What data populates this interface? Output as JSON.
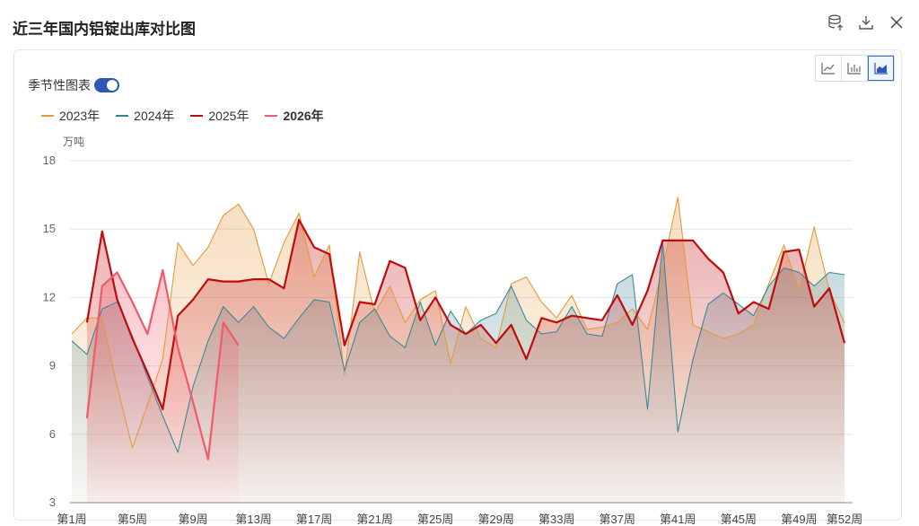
{
  "header": {
    "title": "近三年国内铝锭出库对比图"
  },
  "toolbar": {
    "icons": [
      "database-export-icon",
      "download-icon",
      "close-icon"
    ]
  },
  "chart_toggle": {
    "label": "季节性图表",
    "enabled": true
  },
  "chart_types": [
    "line",
    "bar",
    "area"
  ],
  "chart_types_active": "area",
  "unit_label": "万吨",
  "chart_data": {
    "type": "area",
    "ylim": [
      3,
      18
    ],
    "yticks": [
      "18",
      "15",
      "12",
      "9",
      "6",
      "3"
    ],
    "xlabels": [
      "第1周",
      "第5周",
      "第9周",
      "第13周",
      "第17周",
      "第21周",
      "第25周",
      "第29周",
      "第33周",
      "第37周",
      "第41周",
      "第45周",
      "第49周",
      "第52周"
    ],
    "xlabel_weeks": [
      1,
      5,
      9,
      13,
      17,
      21,
      25,
      29,
      33,
      37,
      41,
      45,
      49,
      52
    ],
    "grid": true,
    "legend_position": "top-left",
    "series": [
      {
        "name": "2023年",
        "color": "#e39a3b",
        "start_week": 1,
        "values": [
          10.4,
          11.1,
          11.1,
          8.1,
          5.4,
          7.3,
          9.3,
          14.4,
          13.4,
          14.2,
          15.6,
          16.1,
          15.0,
          12.6,
          14.4,
          15.7,
          12.9,
          14.3,
          8.6,
          14.0,
          11.3,
          12.5,
          10.9,
          11.9,
          12.3,
          9.1,
          11.6,
          10.2,
          9.8,
          12.6,
          12.9,
          11.8,
          11.1,
          12.1,
          10.6,
          10.7,
          10.9,
          11.5,
          10.6,
          13.3,
          16.4,
          10.8,
          10.5,
          10.2,
          10.4,
          10.8,
          12.6,
          14.3,
          12.3,
          15.1,
          12.3,
          10.9
        ]
      },
      {
        "name": "2024年",
        "color": "#3b8798",
        "start_week": 1,
        "values": [
          10.1,
          9.5,
          11.5,
          11.8,
          10.3,
          8.5,
          6.8,
          5.2,
          8.1,
          10.1,
          11.6,
          10.9,
          11.6,
          10.7,
          10.2,
          11.1,
          11.9,
          11.8,
          8.8,
          10.9,
          11.5,
          10.3,
          9.8,
          11.8,
          9.9,
          11.4,
          10.4,
          11.0,
          11.3,
          12.5,
          11.0,
          10.4,
          10.5,
          11.6,
          10.4,
          10.3,
          12.6,
          13.0,
          7.1,
          14.4,
          6.1,
          9.3,
          11.7,
          12.2,
          11.7,
          11.2,
          12.5,
          13.3,
          13.1,
          12.5,
          13.1,
          13.0
        ]
      },
      {
        "name": "2025年",
        "color": "#c00b0b",
        "start_week": 2,
        "values": [
          10.9,
          14.9,
          11.9,
          10.2,
          8.7,
          7.1,
          11.2,
          11.9,
          12.8,
          12.7,
          12.7,
          12.8,
          12.8,
          12.4,
          15.4,
          14.2,
          13.9,
          9.9,
          11.8,
          11.7,
          13.6,
          13.3,
          11.0,
          12.0,
          10.8,
          10.4,
          10.8,
          10.0,
          10.8,
          9.3,
          11.1,
          10.9,
          11.2,
          11.1,
          11.0,
          12.1,
          10.8,
          12.3,
          14.5,
          14.5,
          14.5,
          13.7,
          13.1,
          11.3,
          11.8,
          11.5,
          14.0,
          14.1,
          11.6,
          12.4,
          10.0
        ]
      },
      {
        "name": "2026年",
        "color": "#f05a6a",
        "start_week": 2,
        "values": [
          6.7,
          12.5,
          13.1,
          11.8,
          10.4,
          13.2,
          9.8,
          7.4,
          4.9,
          10.9,
          9.9
        ]
      }
    ]
  }
}
